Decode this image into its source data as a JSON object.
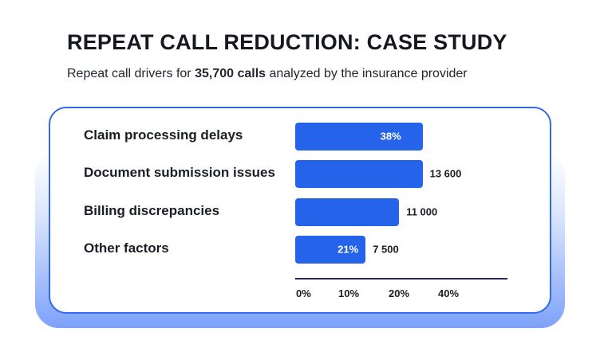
{
  "header": {
    "title": "REPEAT CALL REDUCTION: CASE STUDY",
    "subtitle_prefix": "Repeat call drivers for ",
    "subtitle_bold": "35,700 calls",
    "subtitle_suffix": " analyzed by the insurance provider"
  },
  "colors": {
    "bar": "#2563eb",
    "card_border": "#2f6bea",
    "axis": "#2a2566",
    "glow": "#7ea2fb"
  },
  "chart_data": {
    "type": "bar",
    "orientation": "horizontal",
    "categories": [
      "Claim processing delays",
      "Document submission issues",
      "Billing discrepancies",
      "Other factors"
    ],
    "values": [
      38,
      38,
      31,
      21
    ],
    "bar_labels": [
      "38%",
      "",
      "",
      "21%"
    ],
    "value_labels": [
      "",
      "13 600",
      "11 000",
      "7 500"
    ],
    "x_ticks": [
      "0%",
      "10%",
      "20%",
      "40%"
    ],
    "xlim": [
      0,
      60
    ],
    "grid": false,
    "legend": "none"
  }
}
